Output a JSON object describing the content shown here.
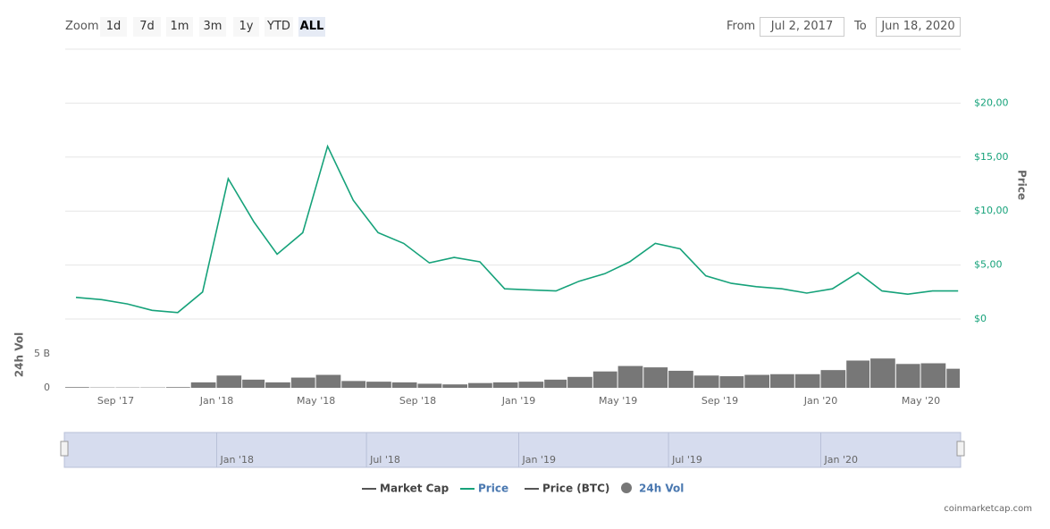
{
  "zoom": {
    "label": "Zoom",
    "buttons": [
      "1d",
      "7d",
      "1m",
      "3m",
      "1y",
      "YTD",
      "ALL"
    ],
    "active_index": 6
  },
  "range": {
    "from_label": "From",
    "from": "Jul 2, 2017",
    "to_label": "To",
    "to": "Jun 18, 2020"
  },
  "chart_data": {
    "type": "line",
    "x": [
      "2017-07",
      "2017-08",
      "2017-09",
      "2017-10",
      "2017-11",
      "2017-12",
      "2018-01",
      "2018-02",
      "2018-03",
      "2018-04",
      "2018-05",
      "2018-06",
      "2018-07",
      "2018-08",
      "2018-09",
      "2018-10",
      "2018-11",
      "2018-12",
      "2019-01",
      "2019-02",
      "2019-03",
      "2019-04",
      "2019-05",
      "2019-06",
      "2019-07",
      "2019-08",
      "2019-09",
      "2019-10",
      "2019-11",
      "2019-12",
      "2020-01",
      "2020-02",
      "2020-03",
      "2020-04",
      "2020-05",
      "2020-06"
    ],
    "xlim": [
      "2017-07-02",
      "2020-06-18"
    ],
    "xticks": [
      {
        "value": "2017-09",
        "label": "Sep '17"
      },
      {
        "value": "2018-01",
        "label": "Jan '18"
      },
      {
        "value": "2018-05",
        "label": "May '18"
      },
      {
        "value": "2018-09",
        "label": "Sep '18"
      },
      {
        "value": "2019-01",
        "label": "Jan '19"
      },
      {
        "value": "2019-05",
        "label": "May '19"
      },
      {
        "value": "2019-09",
        "label": "Sep '19"
      },
      {
        "value": "2020-01",
        "label": "Jan '20"
      },
      {
        "value": "2020-05",
        "label": "May '20"
      }
    ],
    "y_title": "Price",
    "ylim": [
      0,
      25
    ],
    "yticks": [
      {
        "value": 0,
        "label": "$0"
      },
      {
        "value": 5,
        "label": "$5,00"
      },
      {
        "value": 10,
        "label": "$10,00"
      },
      {
        "value": 15,
        "label": "$15,00"
      },
      {
        "value": 20,
        "label": "$20,00"
      }
    ],
    "y2_title": "24h Vol",
    "y2lim": [
      0,
      9.7
    ],
    "y2ticks": [
      0,
      {
        "value": 5,
        "label": "5 B"
      }
    ],
    "grid": true,
    "series": [
      {
        "name": "Market Cap",
        "color": "#555555",
        "visible": false
      },
      {
        "name": "Price",
        "color": "#16a27a",
        "visible": true,
        "values": [
          2.0,
          1.8,
          1.4,
          0.8,
          0.6,
          2.5,
          13,
          9,
          6,
          8,
          16,
          11,
          8,
          7,
          5.2,
          5.7,
          5.3,
          2.8,
          2.7,
          2.6,
          3.5,
          4.2,
          5.3,
          7,
          6.5,
          4.0,
          3.3,
          3.0,
          2.8,
          2.4,
          2.8,
          4.3,
          2.6,
          2.3,
          2.6,
          2.6
        ]
      },
      {
        "name": "Price (BTC)",
        "color": "#555555",
        "visible": false
      },
      {
        "name": "24h Vol",
        "color": "#777777",
        "visible": true,
        "axis": "y2",
        "values": [
          0.1,
          0.05,
          0.05,
          0.05,
          0.1,
          0.8,
          1.8,
          1.2,
          0.8,
          1.5,
          1.9,
          1.0,
          0.9,
          0.8,
          0.6,
          0.5,
          0.7,
          0.8,
          0.9,
          1.2,
          1.6,
          2.4,
          3.2,
          3.0,
          2.5,
          1.8,
          1.7,
          1.9,
          2.0,
          2.0,
          2.6,
          4.0,
          4.3,
          3.5,
          3.6,
          2.8
        ]
      }
    ],
    "navigator_ticks": [
      {
        "value": "2018-01",
        "label": "Jan '18"
      },
      {
        "value": "2018-07",
        "label": "Jul '18"
      },
      {
        "value": "2019-01",
        "label": "Jan '19"
      },
      {
        "value": "2019-07",
        "label": "Jul '19"
      },
      {
        "value": "2020-01",
        "label": "Jan '20"
      }
    ],
    "credit": "coinmarketcap.com"
  }
}
